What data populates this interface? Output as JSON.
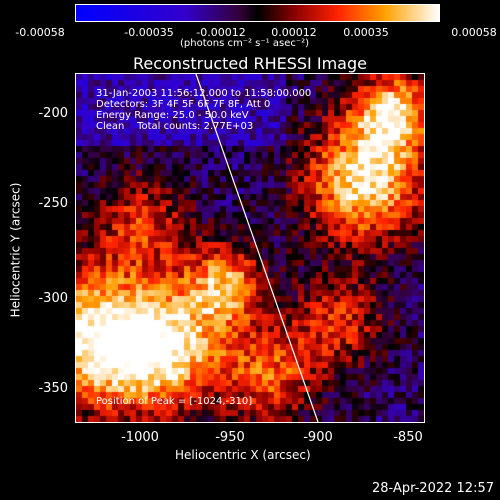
{
  "colorbar": {
    "ticks": [
      "-0.00058",
      "-0.00035",
      "-0.00012",
      "0.00012",
      "0.00035",
      "0.00058"
    ],
    "unit": "(photons cm⁻² s⁻¹ asec⁻²)"
  },
  "title": "Reconstructed RHESSI Image",
  "info": {
    "line1": "31-Jan-2003 11:56:12.000 to 11:58:00.000",
    "line2": "Detectors: 3F 4F 5F 6F 7F 8F, Att 0",
    "line3": "Energy Range: 25.0 - 50.0 keV",
    "line4": "Clean    Total counts: 2.77E+03"
  },
  "peak": "Position of Peak = [-1024,-310]",
  "axes": {
    "y_ticks": [
      "-200",
      "-250",
      "-300",
      "-350"
    ],
    "x_ticks": [
      "-1000",
      "-950",
      "-900",
      "-850"
    ],
    "y_title": "Heliocentric Y (arcsec)",
    "x_title": "Heliocentric X (arcsec)"
  },
  "footer": "28-Apr-2022 12:57"
}
